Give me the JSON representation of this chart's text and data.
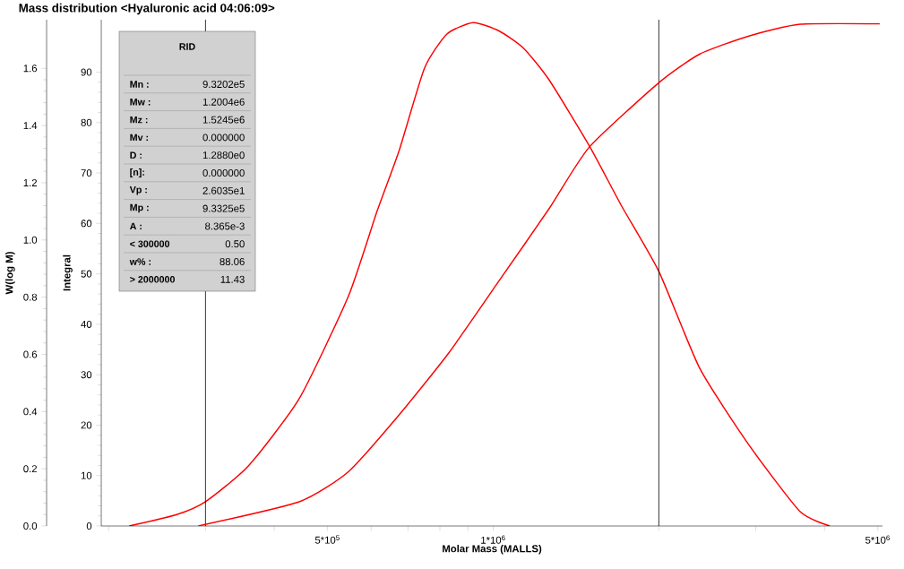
{
  "chart_data": {
    "type": "line",
    "title": "Mass distribution <Hyaluronic acid 04:06:09>",
    "xlabel": "Molar Mass (MALLS)",
    "ylabel": "W(log M)",
    "y2label": "Integral",
    "log": "x",
    "xlim": [
      194000,
      5100000
    ],
    "xticks": [
      {
        "value": 200000,
        "label": null
      },
      {
        "value": 300000,
        "label": null
      },
      {
        "value": 400000,
        "label": null
      },
      {
        "value": 500000,
        "label": "5*10$^{5}$"
      },
      {
        "value": 600000,
        "label": null
      },
      {
        "value": 700000,
        "label": null
      },
      {
        "value": 800000,
        "label": null
      },
      {
        "value": 900000,
        "label": null
      },
      {
        "value": 1000000,
        "label": "1*10$^{6}$"
      },
      {
        "value": 2000000,
        "label": null
      },
      {
        "value": 3000000,
        "label": null
      },
      {
        "value": 4000000,
        "label": null
      },
      {
        "value": 5000000,
        "label": "5*10$^{6}$"
      }
    ],
    "ylim": [
      0,
      1.77
    ],
    "yticks": [
      {
        "value": 0,
        "label": "0.0"
      },
      0.2,
      0.4,
      0.6,
      0.8,
      {
        "value": 1,
        "label": "1.0"
      },
      1.2,
      1.4,
      1.6
    ],
    "y2lim": [
      0,
      100.4
    ],
    "y2ticks": [
      0,
      10,
      20,
      30,
      40,
      50,
      60,
      70,
      80,
      90
    ],
    "series": [
      {
        "color": "#ff0000",
        "x": [
          218000,
          266000,
          300000,
          359000,
          444000,
          546000,
          615000,
          674000,
          750000,
          824000,
          920000,
          1026000,
          1136000,
          1263000,
          1494000,
          1710000,
          2000000,
          2375000,
          2924000,
          3613000,
          4090000
        ],
        "values": [
          0,
          0.04,
          0.085,
          0.21,
          0.445,
          0.805,
          1.1,
          1.31,
          1.6,
          1.72,
          1.76,
          1.73,
          1.67,
          1.56,
          1.33,
          1.12,
          0.89,
          0.55,
          0.28,
          0.05,
          0
        ]
      },
      {
        "color": "#ff0000",
        "axis": "y2",
        "x": [
          291000,
          444000,
          546000,
          674000,
          830000,
          1026000,
          1263000,
          1494000,
          2000000,
          2375000,
          2924000,
          3613000,
          5040000
        ],
        "values": [
          0,
          4.8,
          10.8,
          22.0,
          34.3,
          48.7,
          62.9,
          75.1,
          87.9,
          93.6,
          97.2,
          99.5,
          99.6
        ]
      }
    ],
    "ref_lines": [
      {
        "axis": "x",
        "value": 300000,
        "color": "#000000"
      },
      {
        "axis": "x",
        "value": 2000000,
        "color": "#000000"
      }
    ],
    "annotations": [
      "RID",
      "Mn :",
      "9.3202e5",
      "Mw :",
      "1.2004e6",
      "Mz :",
      "1.5245e6",
      "Mv :",
      "0.000000",
      "D :",
      "1.2880e0",
      "[n]:",
      "0.000000",
      "Vp :",
      "2.6035e1",
      "Mp :",
      "9.3325e5",
      "A :",
      "8.365e-3",
      "< 300000",
      "0.50",
      "w% :",
      "88.06",
      "> 2000000",
      "11.43"
    ]
  }
}
